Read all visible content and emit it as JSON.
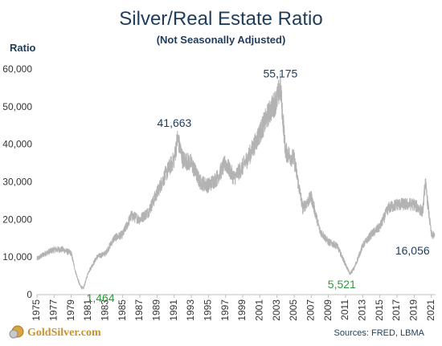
{
  "chart_data": {
    "type": "line",
    "title": "Silver/Real Estate Ratio",
    "subtitle": "(Not Seasonally Adjusted)",
    "ylabel": "Ratio",
    "ylim": [
      0,
      60000
    ],
    "yticks": [
      0,
      10000,
      20000,
      30000,
      40000,
      50000,
      60000
    ],
    "ytick_labels": [
      "0",
      "10,000",
      "20,000",
      "30,000",
      "40,000",
      "50,000",
      "60,000"
    ],
    "xlim": [
      1975,
      2021.5
    ],
    "xticks": [
      "1975",
      "1977",
      "1979",
      "1981",
      "1983",
      "1985",
      "1987",
      "1989",
      "1991",
      "1993",
      "1995",
      "1997",
      "1999",
      "2001",
      "2003",
      "2005",
      "2007",
      "2009",
      "2011",
      "2013",
      "2015",
      "2017",
      "2019",
      "2021"
    ],
    "grid": false,
    "line_color": "#b3b3b3",
    "series": [
      {
        "x": [
          1975,
          1976,
          1977,
          1978,
          1979,
          1979.5,
          1980,
          1980.4,
          1981,
          1982,
          1983,
          1984,
          1985,
          1986,
          1987,
          1988,
          1989,
          1990,
          1991,
          1991.4,
          1992,
          1993,
          1994,
          1995,
          1996,
          1997,
          1998,
          1999,
          2000,
          2001,
          2002,
          2003,
          2003.4,
          2004,
          2005,
          2006,
          2007,
          2008,
          2009,
          2010,
          2011,
          2011.5,
          2012,
          2013,
          2014,
          2015,
          2016,
          2017,
          2018,
          2019,
          2020,
          2020.3,
          2021,
          2021.4
        ],
        "y": [
          9500,
          11000,
          12000,
          12000,
          11000,
          6000,
          2500,
          1464,
          6000,
          10000,
          11000,
          15000,
          16000,
          21000,
          20000,
          22000,
          27000,
          32000,
          36000,
          41663,
          36000,
          35000,
          30000,
          29000,
          31000,
          35000,
          31000,
          34000,
          38000,
          43000,
          48000,
          52000,
          55175,
          38000,
          36000,
          23000,
          26000,
          17000,
          14000,
          13000,
          8000,
          5521,
          7000,
          13000,
          16000,
          18000,
          23000,
          24000,
          24000,
          24000,
          22000,
          30000,
          16056,
          15500
        ]
      }
    ],
    "annotations": [
      {
        "text": "55,175",
        "x": 2003.4,
        "y": 55175,
        "color": "#1f3d5a"
      },
      {
        "text": "41,663",
        "x": 1991.4,
        "y": 41663,
        "color": "#1f3d5a"
      },
      {
        "text": "1,464",
        "x": 1980.4,
        "y": 1464,
        "color": "#2a9d3a"
      },
      {
        "text": "5,521",
        "x": 2011.5,
        "y": 5521,
        "color": "#2a9d3a"
      },
      {
        "text": "16,056",
        "x": 2021,
        "y": 16056,
        "color": "#1f3d5a"
      }
    ]
  },
  "footer": {
    "logo": "GoldSilver.com",
    "source": "Sources: FRED, LBMA"
  }
}
